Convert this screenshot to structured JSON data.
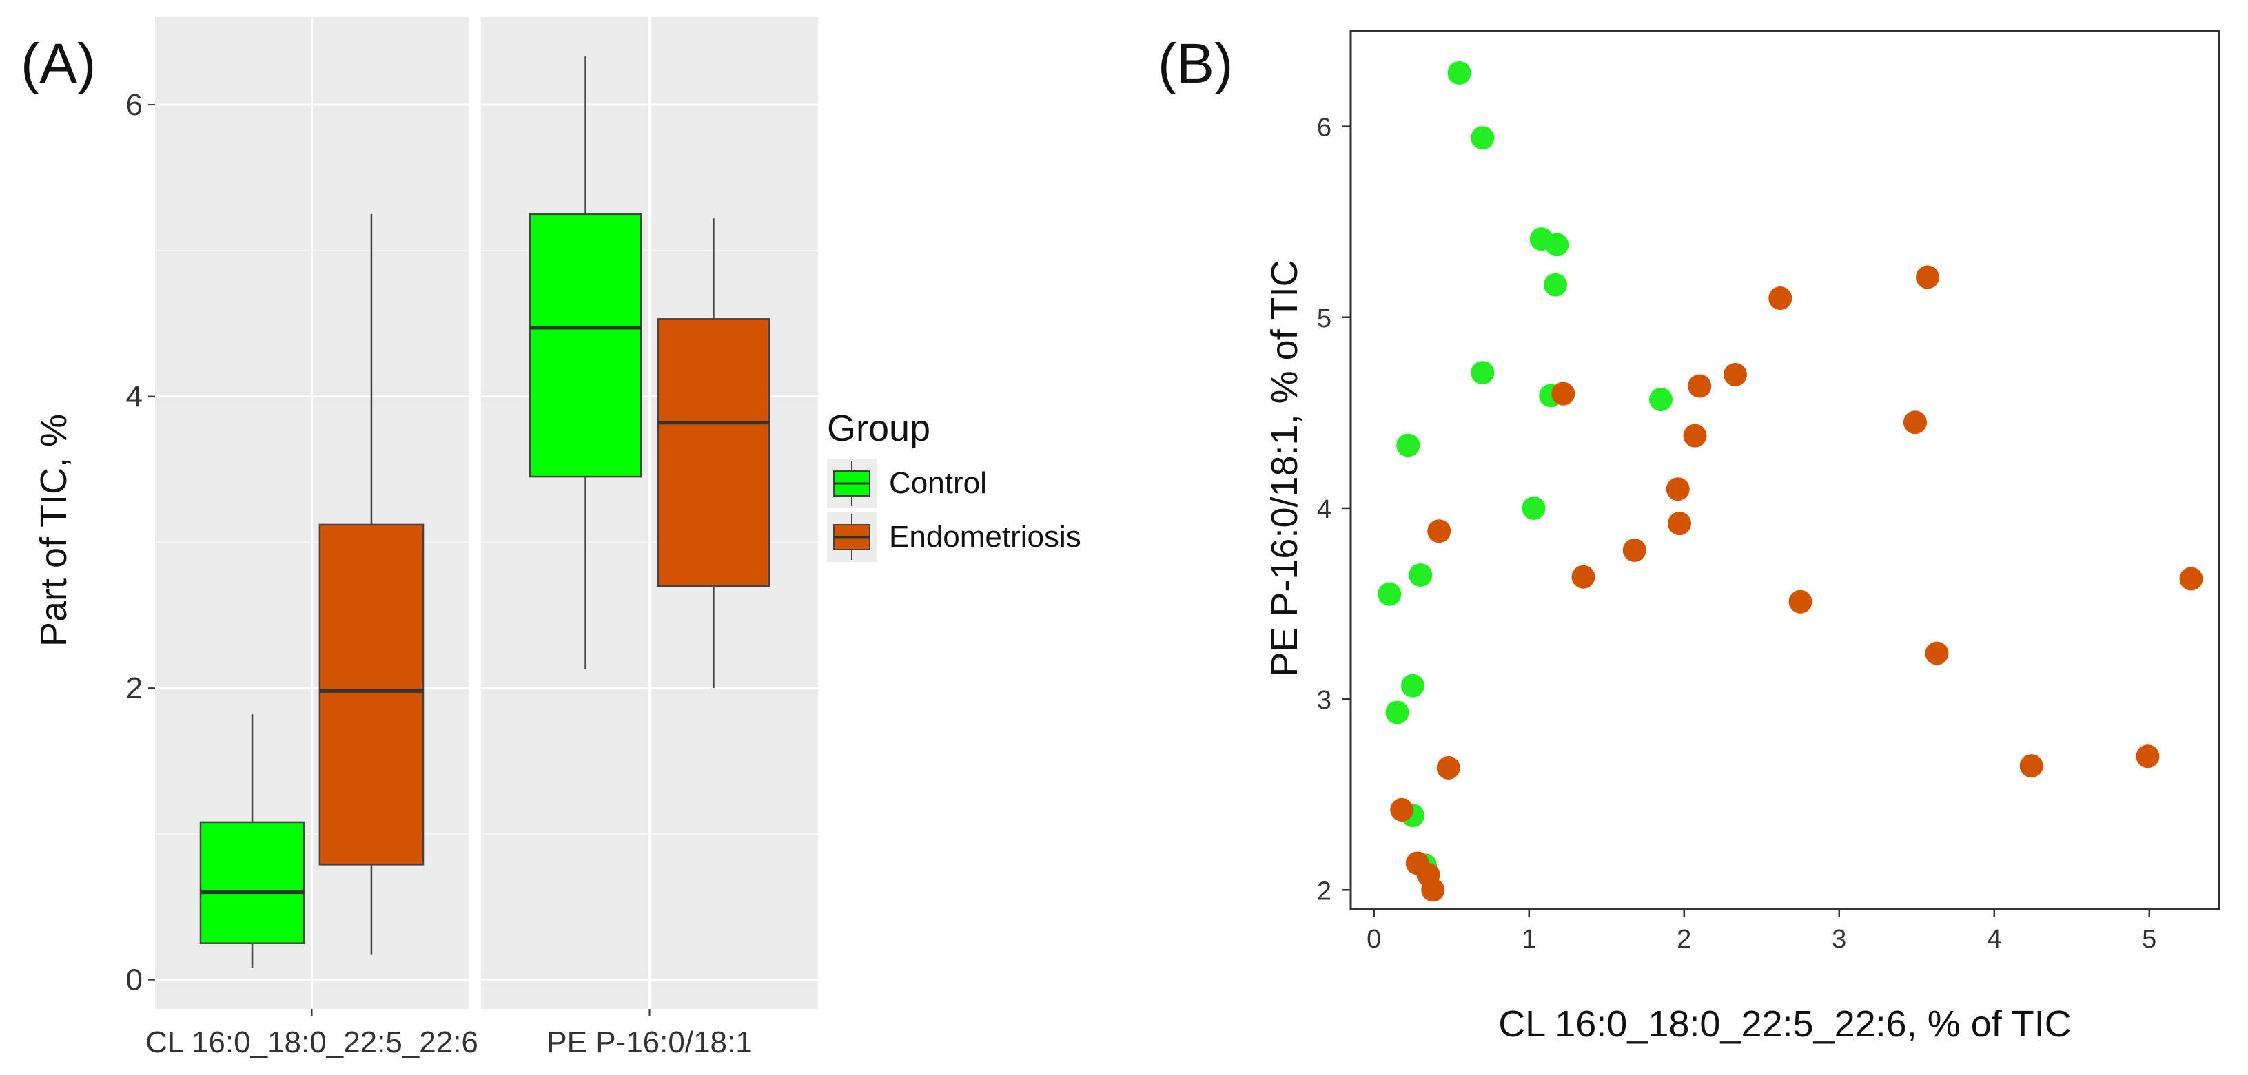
{
  "panels": {
    "a_label": "(A)",
    "b_label": "(B)"
  },
  "chart_data": [
    {
      "type": "boxplot",
      "title": "",
      "ylabel": "Part of TIC, %",
      "xlabel": "",
      "ylim": [
        -0.2,
        6.6
      ],
      "yticks": [
        0,
        2,
        4,
        6
      ],
      "grid": true,
      "facets": [
        "CL 16:0_18:0_22:5_22:6",
        "PE P-16:0/18:1"
      ],
      "legend": {
        "title": "Group",
        "position": "right",
        "entries": [
          {
            "name": "Control",
            "color": "#00ff00"
          },
          {
            "name": "Endometriosis",
            "color": "#d35400"
          }
        ]
      },
      "series": [
        {
          "name": "Control",
          "color": "#00ff00",
          "boxes": [
            {
              "facet": "CL 16:0_18:0_22:5_22:6",
              "whisker_low": 0.08,
              "q1": 0.25,
              "median": 0.6,
              "q3": 1.08,
              "whisker_high": 1.82
            },
            {
              "facet": "PE P-16:0/18:1",
              "whisker_low": 2.13,
              "q1": 3.45,
              "median": 4.47,
              "q3": 5.25,
              "whisker_high": 6.33
            }
          ]
        },
        {
          "name": "Endometriosis",
          "color": "#d35400",
          "boxes": [
            {
              "facet": "CL 16:0_18:0_22:5_22:6",
              "whisker_low": 0.17,
              "q1": 0.79,
              "median": 1.98,
              "q3": 3.12,
              "whisker_high": 5.25
            },
            {
              "facet": "PE P-16:0/18:1",
              "whisker_low": 2.0,
              "q1": 2.7,
              "median": 3.82,
              "q3": 4.53,
              "whisker_high": 5.22
            }
          ]
        }
      ]
    },
    {
      "type": "scatter",
      "title": "",
      "xlabel": "CL 16:0_18:0_22:5_22:6, % of TIC",
      "ylabel": "PE P-16:0/18:1, % of TIC",
      "xlim": [
        -0.15,
        5.45
      ],
      "ylim": [
        1.9,
        6.5
      ],
      "xticks": [
        0,
        1,
        2,
        3,
        4,
        5
      ],
      "yticks": [
        2,
        3,
        4,
        5,
        6
      ],
      "grid": false,
      "series": [
        {
          "name": "Control",
          "color": "#22ee22",
          "points": [
            [
              0.55,
              6.28
            ],
            [
              0.7,
              5.94
            ],
            [
              1.08,
              5.41
            ],
            [
              1.18,
              5.38
            ],
            [
              1.17,
              5.17
            ],
            [
              0.7,
              4.71
            ],
            [
              1.14,
              4.59
            ],
            [
              1.85,
              4.57
            ],
            [
              0.22,
              4.33
            ],
            [
              1.03,
              4.0
            ],
            [
              0.3,
              3.65
            ],
            [
              0.1,
              3.55
            ],
            [
              0.25,
              3.07
            ],
            [
              0.15,
              2.93
            ],
            [
              0.25,
              2.39
            ],
            [
              0.33,
              2.13
            ]
          ]
        },
        {
          "name": "Endometriosis",
          "color": "#d35400",
          "points": [
            [
              3.57,
              5.21
            ],
            [
              2.62,
              5.1
            ],
            [
              2.33,
              4.7
            ],
            [
              2.1,
              4.64
            ],
            [
              1.22,
              4.6
            ],
            [
              3.49,
              4.45
            ],
            [
              2.07,
              4.38
            ],
            [
              1.96,
              4.1
            ],
            [
              1.97,
              3.92
            ],
            [
              0.42,
              3.88
            ],
            [
              1.68,
              3.78
            ],
            [
              1.35,
              3.64
            ],
            [
              5.27,
              3.63
            ],
            [
              2.75,
              3.51
            ],
            [
              3.63,
              3.24
            ],
            [
              4.99,
              2.7
            ],
            [
              4.24,
              2.65
            ],
            [
              0.48,
              2.64
            ],
            [
              0.18,
              2.42
            ],
            [
              0.28,
              2.14
            ],
            [
              0.35,
              2.08
            ],
            [
              0.38,
              2.0
            ]
          ]
        }
      ]
    }
  ]
}
